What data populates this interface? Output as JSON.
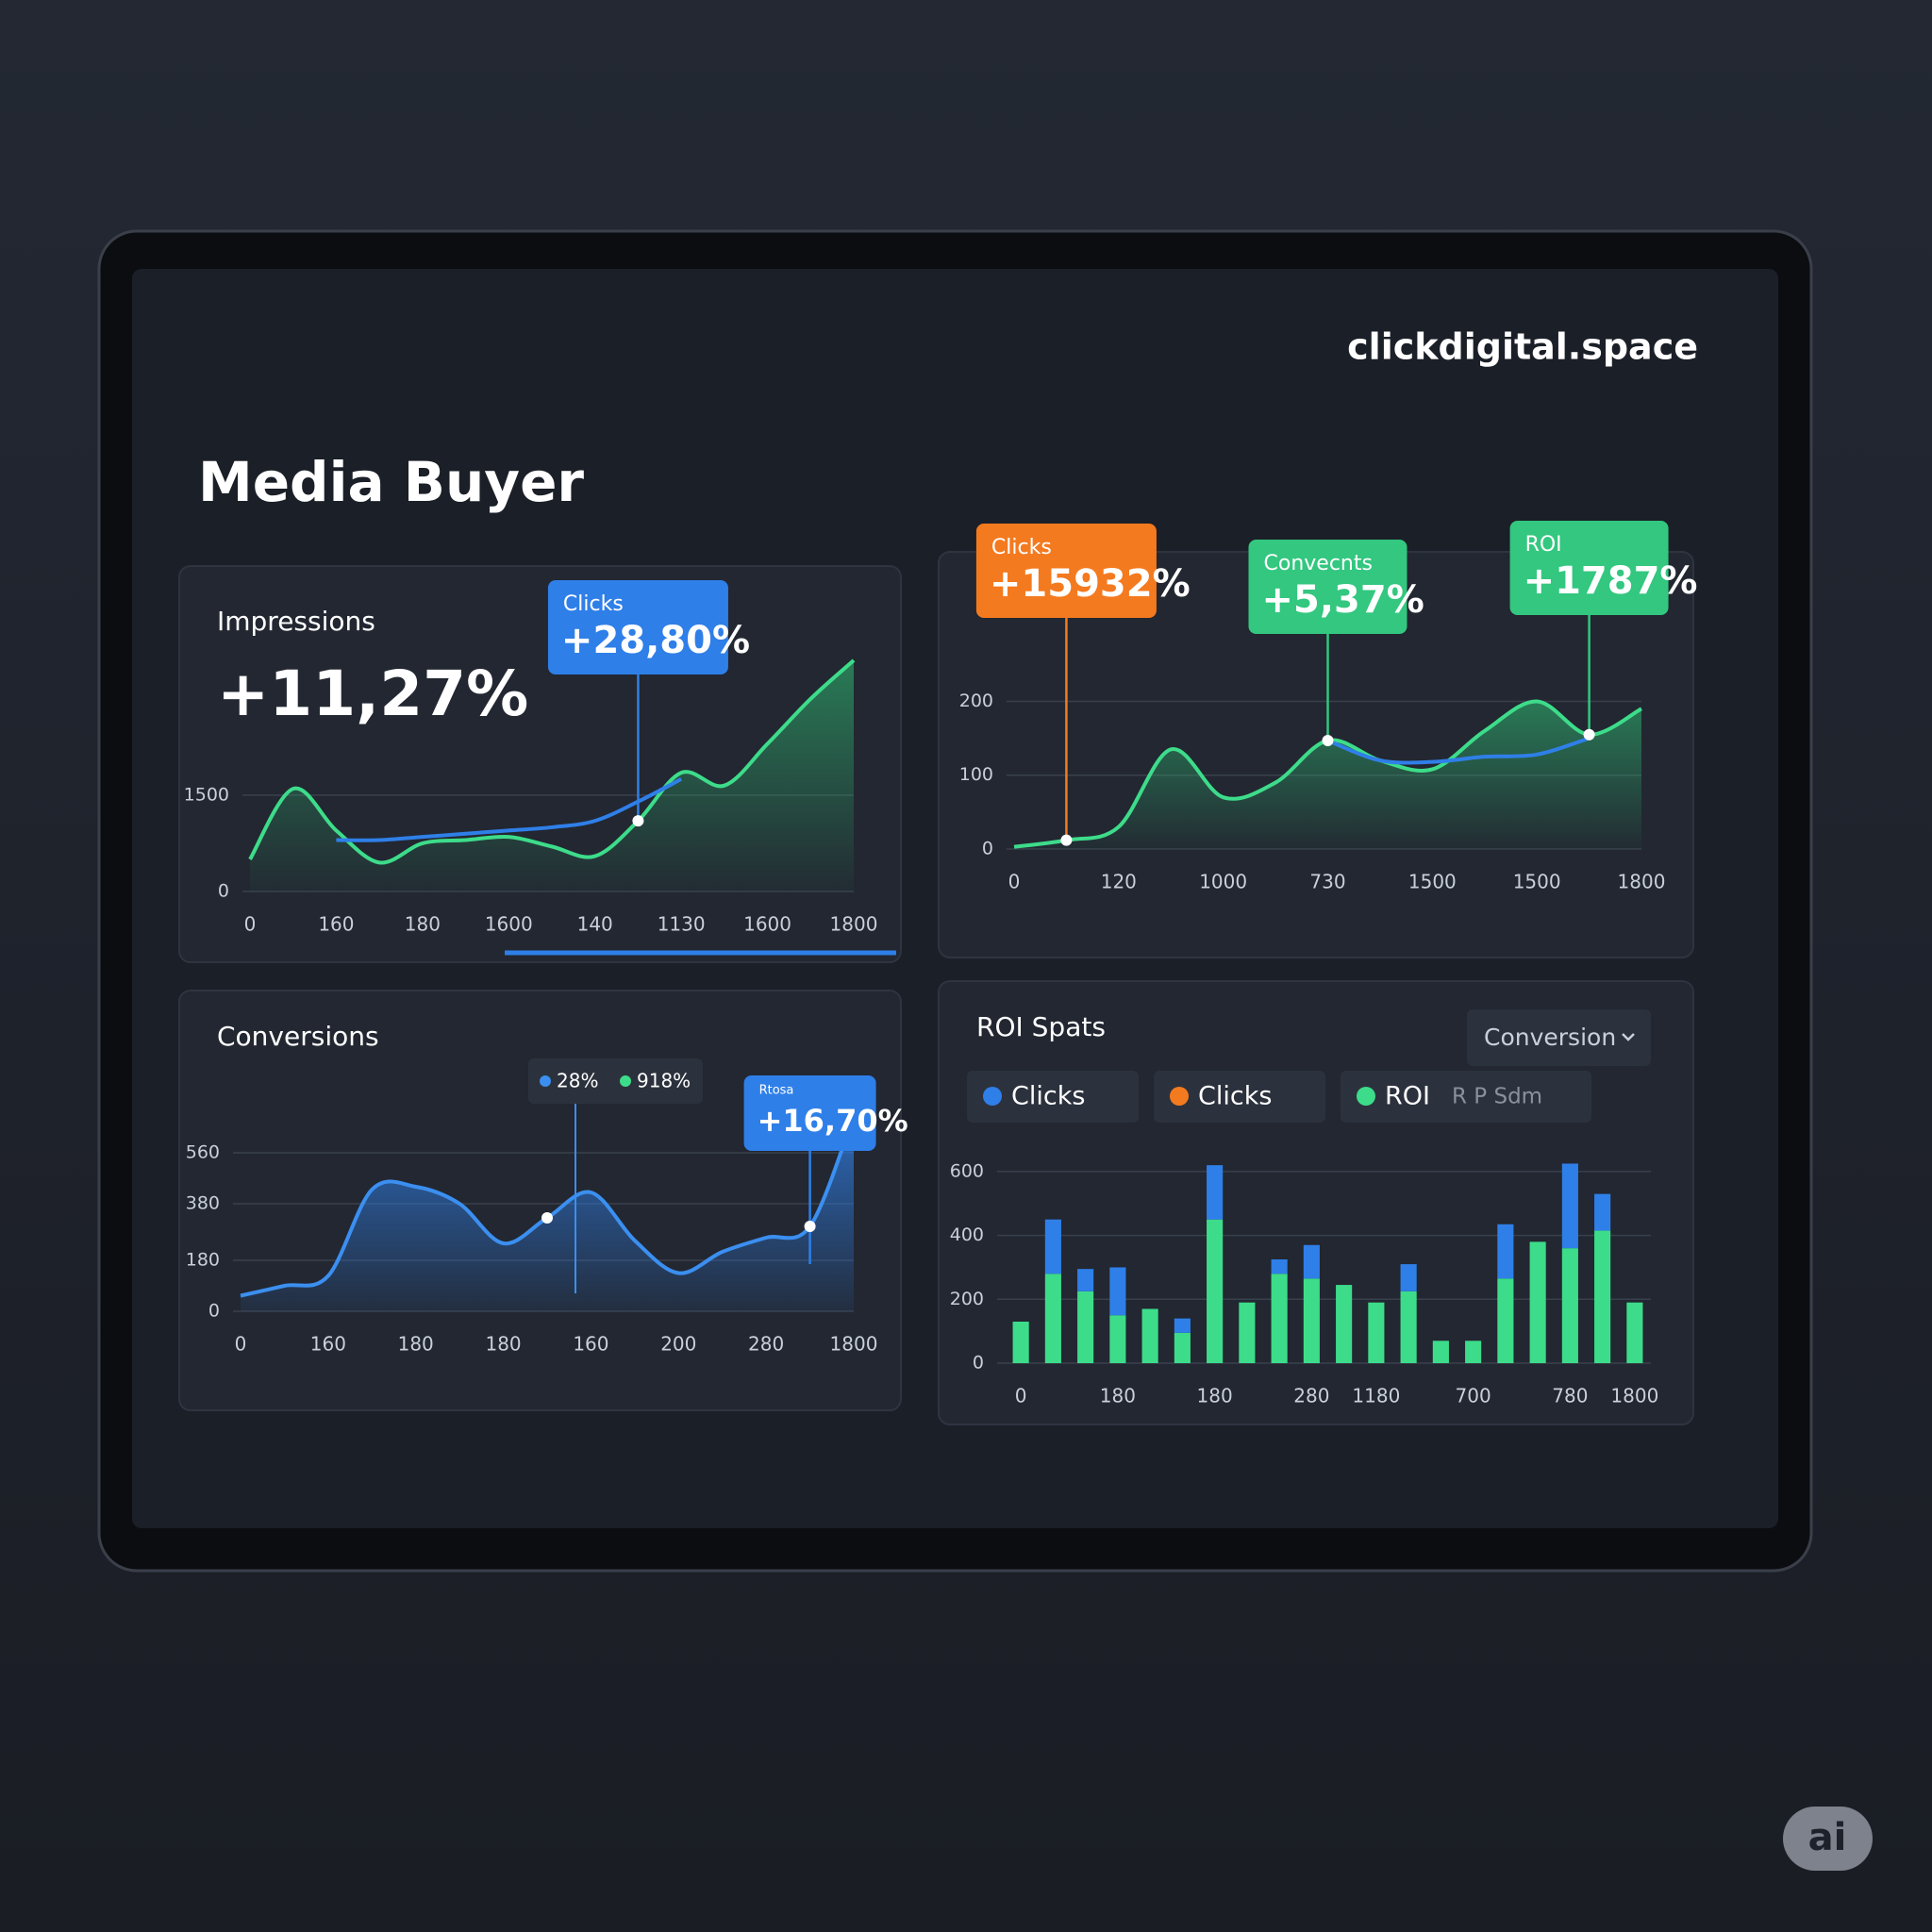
{
  "header": {
    "title": "Media Buyer",
    "brand": "clickdigital.space"
  },
  "badge": "ai",
  "chart_data": [
    {
      "type": "area",
      "title": "Impressions",
      "headline": "+11,27%",
      "categories": [
        "0",
        null,
        "160",
        null,
        "180",
        null,
        "1600",
        null,
        "140",
        null,
        "1130",
        null,
        "1600",
        null,
        "1800"
      ],
      "series": [
        {
          "color": "#3ddc8a",
          "area": true,
          "values": [
            500,
            1600,
            950,
            450,
            750,
            800,
            850,
            700,
            550,
            1100,
            1850,
            1650,
            2300,
            3000,
            3600
          ]
        },
        {
          "color": "#2f7fe8",
          "values": [
            null,
            null,
            800,
            800,
            850,
            900,
            950,
            1000,
            1100,
            1400,
            1750,
            null,
            null,
            null,
            null
          ]
        }
      ],
      "ylim": [
        0,
        3600
      ],
      "yticks": [
        0,
        1500
      ],
      "grid": true,
      "callouts": [
        {
          "label": "Clicks",
          "text": "+28,80%",
          "color": "#2f7fe8"
        }
      ]
    },
    {
      "type": "area",
      "categories": [
        "0",
        null,
        "120",
        null,
        "1000",
        null,
        "730",
        null,
        "1500",
        null,
        "1500",
        null,
        "1800"
      ],
      "series": [
        {
          "color": "#3ddc8a",
          "area": true,
          "values": [
            3,
            12,
            30,
            135,
            70,
            90,
            147,
            120,
            108,
            160,
            200,
            155,
            190
          ]
        },
        {
          "color": "#2f7fe8",
          "values": [
            null,
            null,
            null,
            null,
            null,
            null,
            147,
            120,
            118,
            125,
            128,
            150,
            null
          ]
        }
      ],
      "ylim": [
        0,
        230
      ],
      "yticks": [
        0,
        100,
        200
      ],
      "grid": true,
      "callouts": [
        {
          "label": "Clicks",
          "text": "+15932%",
          "color": "#f47a1f"
        },
        {
          "label": "Convecnts",
          "text": "+5,37%",
          "color": "#33c77f"
        },
        {
          "label": "ROI",
          "text": "+1787%",
          "color": "#33c77f"
        }
      ]
    },
    {
      "type": "area",
      "title": "Conversions",
      "categories": [
        "0",
        null,
        "160",
        null,
        "180",
        null,
        "180",
        null,
        "160",
        null,
        "200",
        null,
        "280",
        null,
        "1800"
      ],
      "series": [
        {
          "color": "#3b8ff0",
          "area": true,
          "values": [
            55,
            90,
            125,
            430,
            440,
            380,
            240,
            330,
            420,
            250,
            135,
            210,
            260,
            300,
            690
          ]
        }
      ],
      "ylim": [
        0,
        700
      ],
      "yticks": [
        0,
        180,
        380,
        560
      ],
      "grid": true,
      "chips": [
        {
          "text": "28%",
          "color": "#3b8ff0"
        },
        {
          "text": "918%",
          "color": "#3ddc8a"
        }
      ],
      "callouts": [
        {
          "label": "Rtosa",
          "text": "+16,70%",
          "color": "#2f7fe8"
        }
      ]
    },
    {
      "type": "bar",
      "title": "ROI Spats",
      "dropdown": "Conversion",
      "legend_note": "R P Sdm",
      "categories": [
        "0",
        null,
        null,
        "180",
        null,
        null,
        "180",
        null,
        null,
        "280",
        null,
        "1180",
        null,
        null,
        "700",
        null,
        null,
        "780",
        null,
        "1800"
      ],
      "series": [
        {
          "name": "Clicks",
          "color": "#2f7fe8",
          "values": [
            0,
            170,
            70,
            150,
            0,
            45,
            170,
            0,
            45,
            105,
            0,
            0,
            85,
            0,
            0,
            170,
            0,
            265,
            115,
            0
          ]
        },
        {
          "name": "Clicks",
          "color": "#f47a1f",
          "values": [
            null,
            null,
            null,
            null,
            null,
            null,
            null,
            null,
            null,
            null,
            null,
            null,
            null,
            null,
            null,
            null,
            null,
            null,
            null,
            null
          ]
        },
        {
          "name": "ROI",
          "color": "#3ddc8a",
          "values": [
            130,
            280,
            225,
            150,
            170,
            95,
            450,
            190,
            280,
            265,
            245,
            190,
            225,
            70,
            70,
            265,
            380,
            360,
            415,
            190
          ]
        }
      ],
      "ylim": [
        0,
        650
      ],
      "yticks": [
        0,
        200,
        400,
        600
      ],
      "grid": true
    }
  ]
}
